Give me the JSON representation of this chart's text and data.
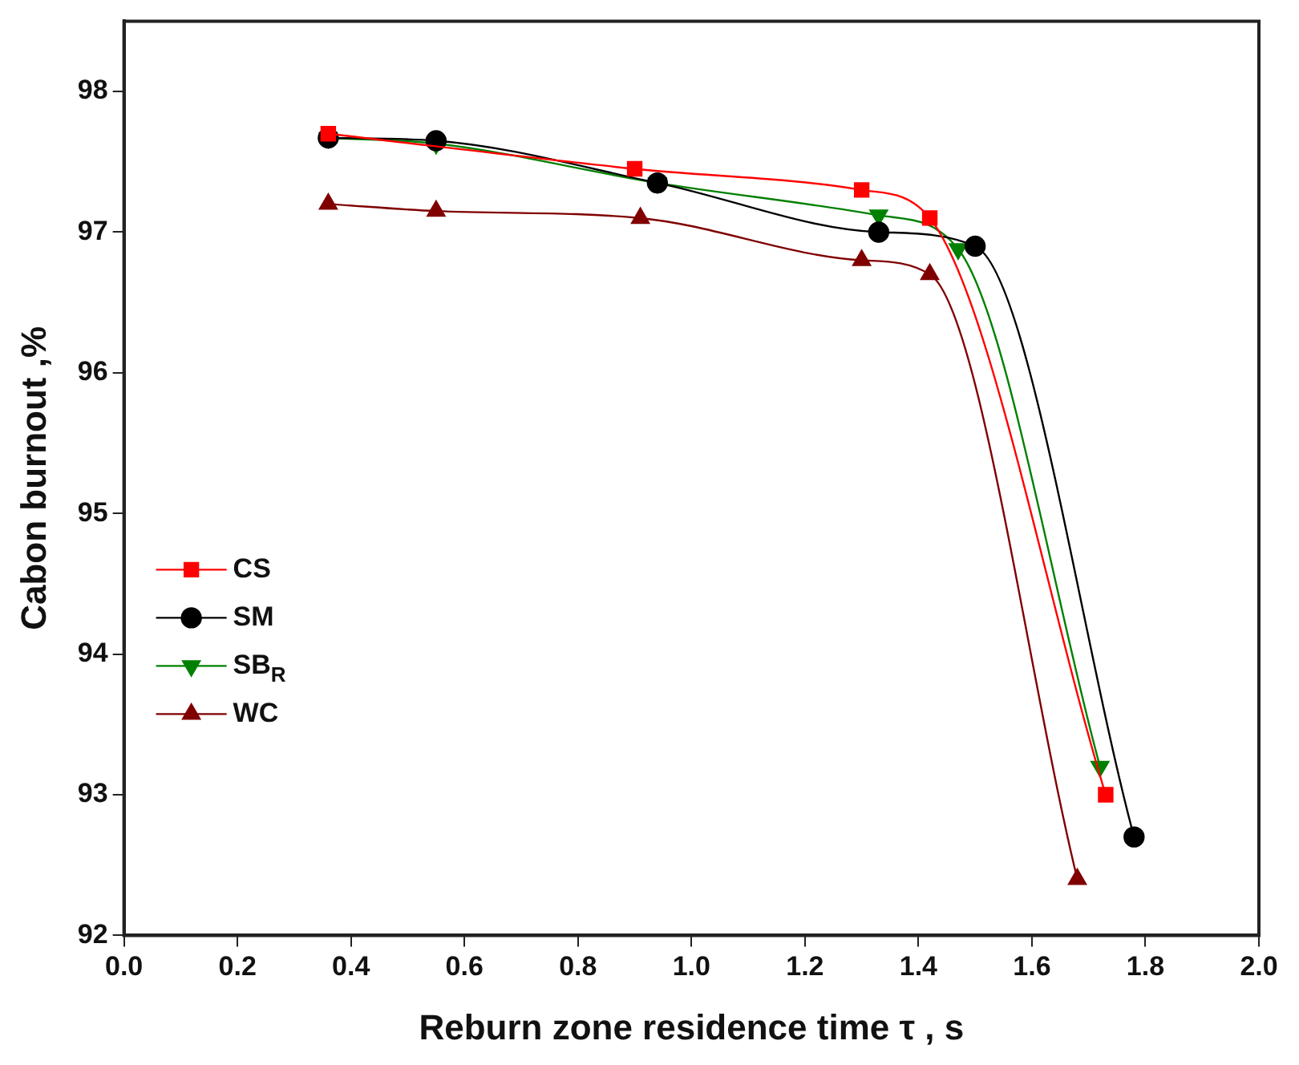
{
  "chart_data": {
    "type": "line",
    "xlabel": "Reburn zone residence time τ , s",
    "ylabel": "Cabon burnout ,%",
    "xlim": [
      0,
      2
    ],
    "xticks": [
      {
        "value": 0,
        "label": "0.0"
      },
      {
        "value": 0.2,
        "label": "0.2"
      },
      {
        "value": 0.4,
        "label": "0.4"
      },
      {
        "value": 0.6,
        "label": "0.6"
      },
      {
        "value": 0.8,
        "label": "0.8"
      },
      {
        "value": 1,
        "label": "1.0"
      },
      {
        "value": 1.2,
        "label": "1.2"
      },
      {
        "value": 1.4,
        "label": "1.4"
      },
      {
        "value": 1.6,
        "label": "1.6"
      },
      {
        "value": 1.8,
        "label": "1.8"
      },
      {
        "value": 2,
        "label": "2.0"
      }
    ],
    "ylim": [
      92,
      98.5
    ],
    "yticks": [
      92,
      93,
      94,
      95,
      96,
      97,
      98
    ],
    "grid": false,
    "legend": "left",
    "line_style": "solid",
    "series": [
      {
        "name": "CS",
        "color": "#ff0000",
        "marker": "square",
        "x": [
          0.36,
          0.9,
          1.3,
          1.42,
          1.73
        ],
        "values": [
          97.7,
          97.45,
          97.3,
          97.1,
          93.0
        ]
      },
      {
        "name": "SM",
        "color": "#000000",
        "marker": "circle",
        "x": [
          0.36,
          0.55,
          0.94,
          1.33,
          1.5,
          1.78
        ],
        "values": [
          97.67,
          97.65,
          97.35,
          97.0,
          96.9,
          92.7
        ]
      },
      {
        "name": "SB$_{R}$",
        "color": "#008000",
        "marker": "triangle-down",
        "x": [
          0.36,
          0.55,
          0.94,
          1.33,
          1.47,
          1.72
        ],
        "values": [
          97.67,
          97.63,
          97.35,
          97.12,
          96.88,
          93.2
        ]
      },
      {
        "name": "WC",
        "color": "#800000",
        "marker": "triangle",
        "x": [
          0.36,
          0.55,
          0.91,
          1.3,
          1.42,
          1.68
        ],
        "values": [
          97.2,
          97.15,
          97.1,
          96.8,
          96.7,
          92.4
        ]
      }
    ]
  }
}
